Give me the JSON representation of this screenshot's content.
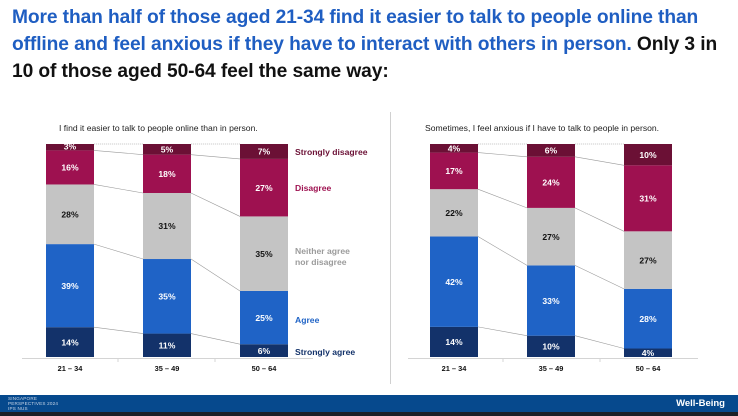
{
  "headline": {
    "blue_part": "More than half of those aged 21-34 find it easier to talk to people online than offline and feel anxious if they have to interact with others in person.",
    "dark_part": " Only 3 in 10 of those aged 50-64 feel the same way:"
  },
  "colors": {
    "strongly_disagree": "#6b1035",
    "disagree": "#9e1150",
    "neither": "#c4c4c4",
    "agree": "#1f63c6",
    "strongly_agree": "#13326a",
    "headline_blue": "#1f5ec2",
    "footer": "#06498d"
  },
  "chart_data": [
    {
      "type": "bar",
      "stacked": true,
      "percent": true,
      "title": "I find it easier to talk to people online than in person.",
      "categories": [
        "21 – 34",
        "35 – 49",
        "50 – 64"
      ],
      "series": [
        {
          "name": "Strongly agree",
          "values": [
            14,
            11,
            6
          ]
        },
        {
          "name": "Agree",
          "values": [
            39,
            35,
            25
          ]
        },
        {
          "name": "Neither agree nor disagree",
          "values": [
            28,
            31,
            35
          ]
        },
        {
          "name": "Disagree",
          "values": [
            16,
            18,
            27
          ]
        },
        {
          "name": "Strongly disagree",
          "values": [
            3,
            5,
            7
          ]
        }
      ],
      "legend": {
        "placement": "right",
        "labels": [
          "Strongly disagree",
          "Disagree",
          "Neither agree",
          "nor disagree",
          "Agree",
          "Strongly agree"
        ]
      },
      "ylim": [
        0,
        100
      ],
      "grid": false
    },
    {
      "type": "bar",
      "stacked": true,
      "percent": true,
      "title": "Sometimes, I feel anxious if I have to talk to people in person.",
      "categories": [
        "21 – 34",
        "35 – 49",
        "50 – 64"
      ],
      "series": [
        {
          "name": "Strongly agree",
          "values": [
            14,
            10,
            4
          ]
        },
        {
          "name": "Agree",
          "values": [
            42,
            33,
            28
          ]
        },
        {
          "name": "Neither agree nor disagree",
          "values": [
            22,
            27,
            27
          ]
        },
        {
          "name": "Disagree",
          "values": [
            17,
            24,
            31
          ]
        },
        {
          "name": "Strongly disagree",
          "values": [
            4,
            6,
            10
          ]
        }
      ],
      "ylim": [
        0,
        100
      ],
      "grid": false
    }
  ],
  "footer": {
    "logo_lines": [
      "SINGAPORE",
      "PERSPECTIVES 2024",
      "IPS NUS"
    ],
    "section_label": "Well-Being"
  }
}
